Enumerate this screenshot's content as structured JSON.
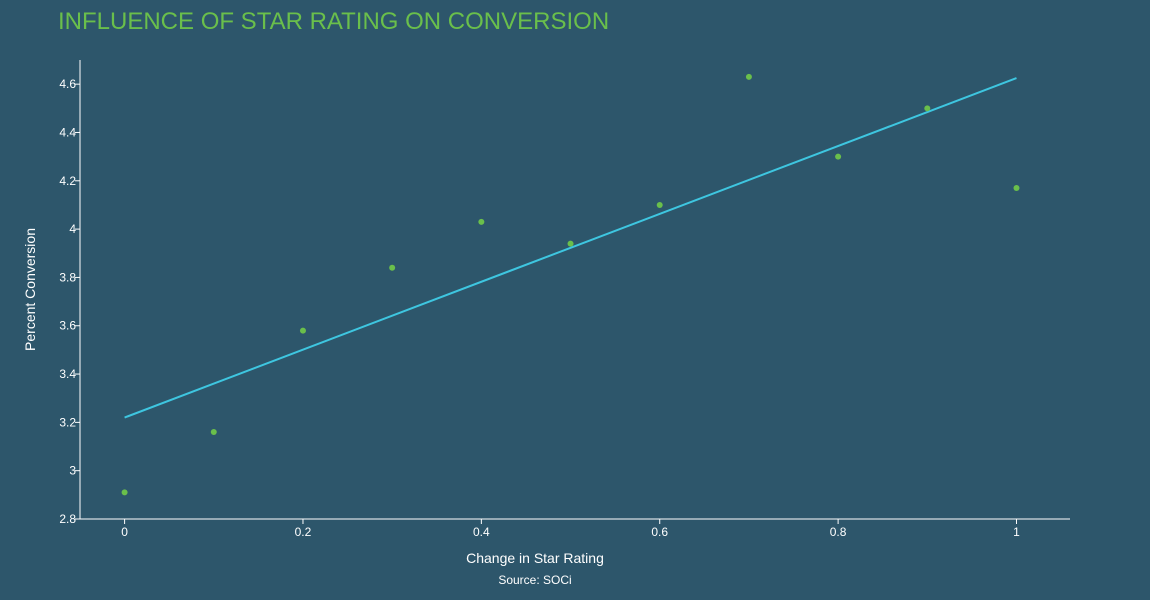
{
  "chart_data": {
    "type": "scatter",
    "title": "INFLUENCE OF STAR RATING ON CONVERSION",
    "xlabel": "Change in Star Rating",
    "ylabel": "Percent Conversion",
    "source": "Source: SOCi",
    "xlim": [
      -0.05,
      1.06
    ],
    "ylim": [
      2.8,
      4.7
    ],
    "x_ticks": [
      0,
      0.2,
      0.4,
      0.6,
      0.8,
      1
    ],
    "x_tick_labels": [
      "0",
      "0.2",
      "0.4",
      "0.6",
      "0.8",
      "1"
    ],
    "y_ticks": [
      2.8,
      3,
      3.2,
      3.4,
      3.6,
      3.8,
      4,
      4.2,
      4.4,
      4.6
    ],
    "y_tick_labels": [
      "2.8",
      "3",
      "3.2",
      "3.4",
      "3.6",
      "3.8",
      "4",
      "4.2",
      "4.4",
      "4.6"
    ],
    "grid": false,
    "series": [
      {
        "x": [
          0,
          0.1,
          0.2,
          0.3,
          0.4,
          0.5,
          0.6,
          0.7,
          0.8,
          0.9,
          1.0
        ],
        "y": [
          2.91,
          3.16,
          3.58,
          3.84,
          4.03,
          3.94,
          4.1,
          4.63,
          4.3,
          4.5,
          4.17
        ],
        "color": "#6abf4b"
      }
    ],
    "trendline": {
      "x": [
        0,
        1
      ],
      "y": [
        3.22,
        4.625
      ],
      "color": "#3ec6e0"
    }
  }
}
